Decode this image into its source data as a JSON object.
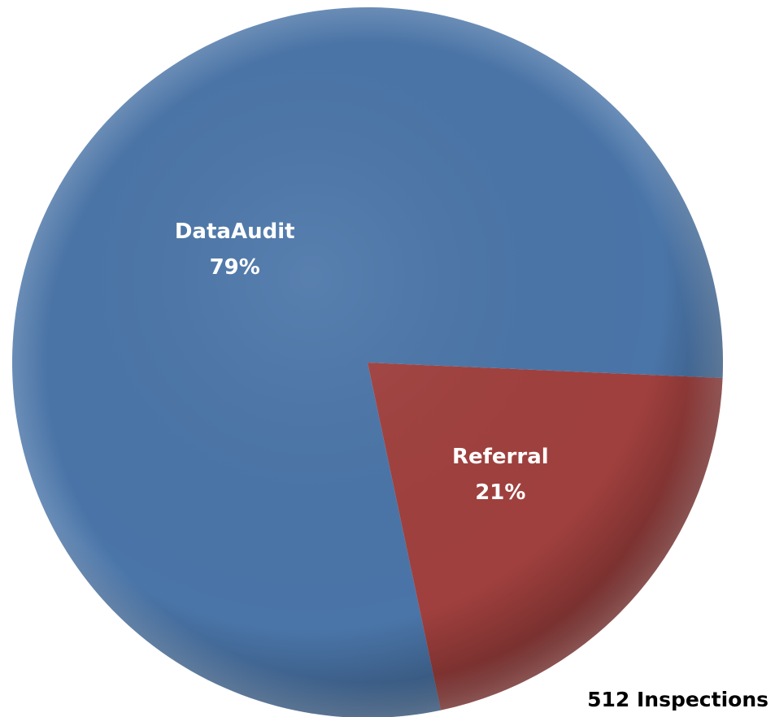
{
  "chart_data": {
    "type": "pie",
    "categories": [
      "DataAudit",
      "Referral"
    ],
    "values": [
      79,
      21
    ],
    "value_labels": [
      "79%",
      "21%"
    ],
    "colors": [
      "#4a75a8",
      "#a0403e"
    ],
    "annotation": "512 Inspections"
  }
}
